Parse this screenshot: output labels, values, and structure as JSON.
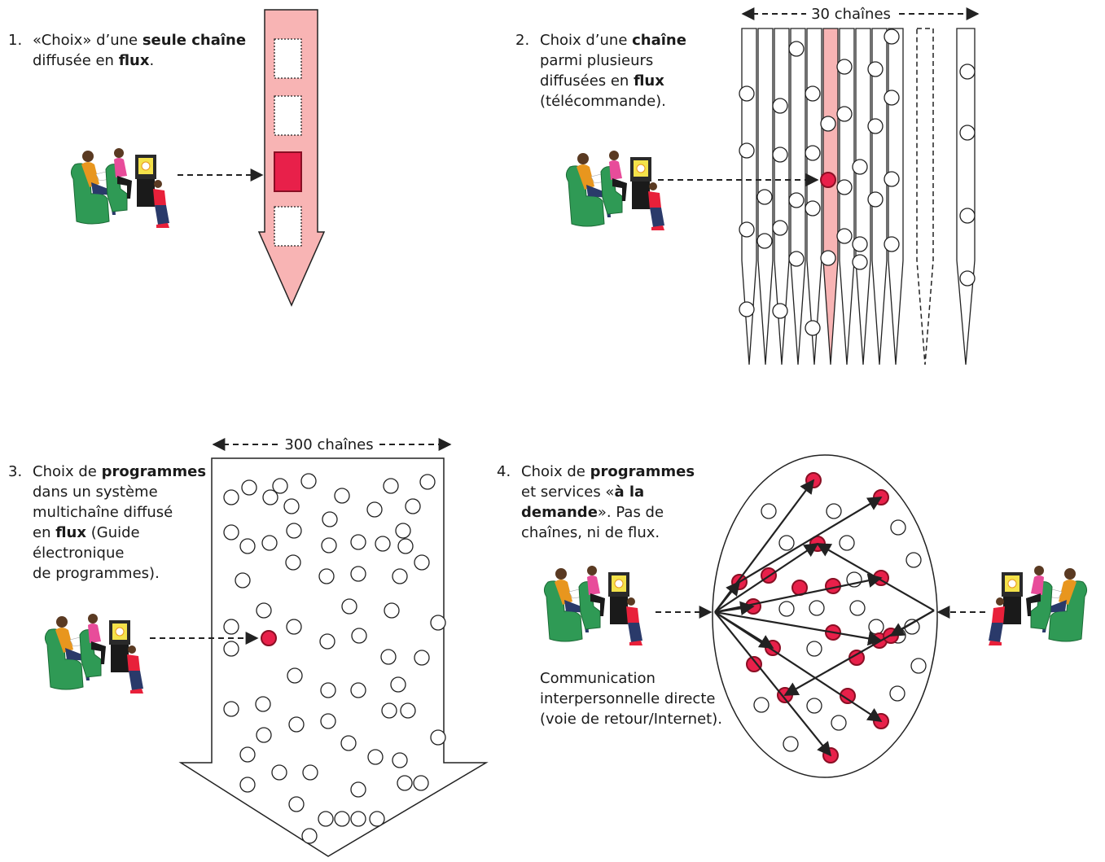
{
  "colors": {
    "stream_fill": "#f8b4b4",
    "selected_fill": "#e8204a",
    "selected_stroke": "#8a0f24",
    "outline": "#222222",
    "sofa": "#2f9a55",
    "sofa_dark": "#1b6b36",
    "tv": "#2a2a2a",
    "tv_screen": "#f4e24a"
  },
  "panels": [
    {
      "number": "1.",
      "segments": [
        [
          {
            "t": "«Choix» d’une "
          },
          {
            "t": "seule chaîne",
            "b": true
          }
        ],
        [
          {
            "t": "diffusée en "
          },
          {
            "t": "flux",
            "b": true
          },
          {
            "t": "."
          }
        ]
      ]
    },
    {
      "number": "2.",
      "segments": [
        [
          {
            "t": "Choix d’une "
          },
          {
            "t": "chaîne",
            "b": true
          }
        ],
        [
          {
            "t": "parmi plusieurs"
          }
        ],
        [
          {
            "t": "diffusées en "
          },
          {
            "t": "flux",
            "b": true
          }
        ],
        [
          {
            "t": "(télécommande)."
          }
        ]
      ],
      "scale_label": "30 chaînes"
    },
    {
      "number": "3.",
      "segments": [
        [
          {
            "t": "Choix de "
          },
          {
            "t": "programmes",
            "b": true
          }
        ],
        [
          {
            "t": "dans un système"
          }
        ],
        [
          {
            "t": "multichaîne diffusé"
          }
        ],
        [
          {
            "t": "en "
          },
          {
            "t": "flux",
            "b": true
          },
          {
            "t": " (Guide"
          }
        ],
        [
          {
            "t": "électronique"
          }
        ],
        [
          {
            "t": "de programmes)."
          }
        ]
      ],
      "scale_label": "300 chaînes"
    },
    {
      "number": "4.",
      "segments": [
        [
          {
            "t": "Choix de "
          },
          {
            "t": "programmes",
            "b": true
          }
        ],
        [
          {
            "t": "et services «"
          },
          {
            "t": "à la",
            "b": true
          }
        ],
        [
          {
            "t": "demande",
            "b": true
          },
          {
            "t": "». Pas de"
          }
        ],
        [
          {
            "t": "chaînes, ni de flux."
          }
        ]
      ],
      "note": [
        "Communication",
        "interpersonnelle directe",
        "(voie de retour/Internet)."
      ]
    }
  ]
}
